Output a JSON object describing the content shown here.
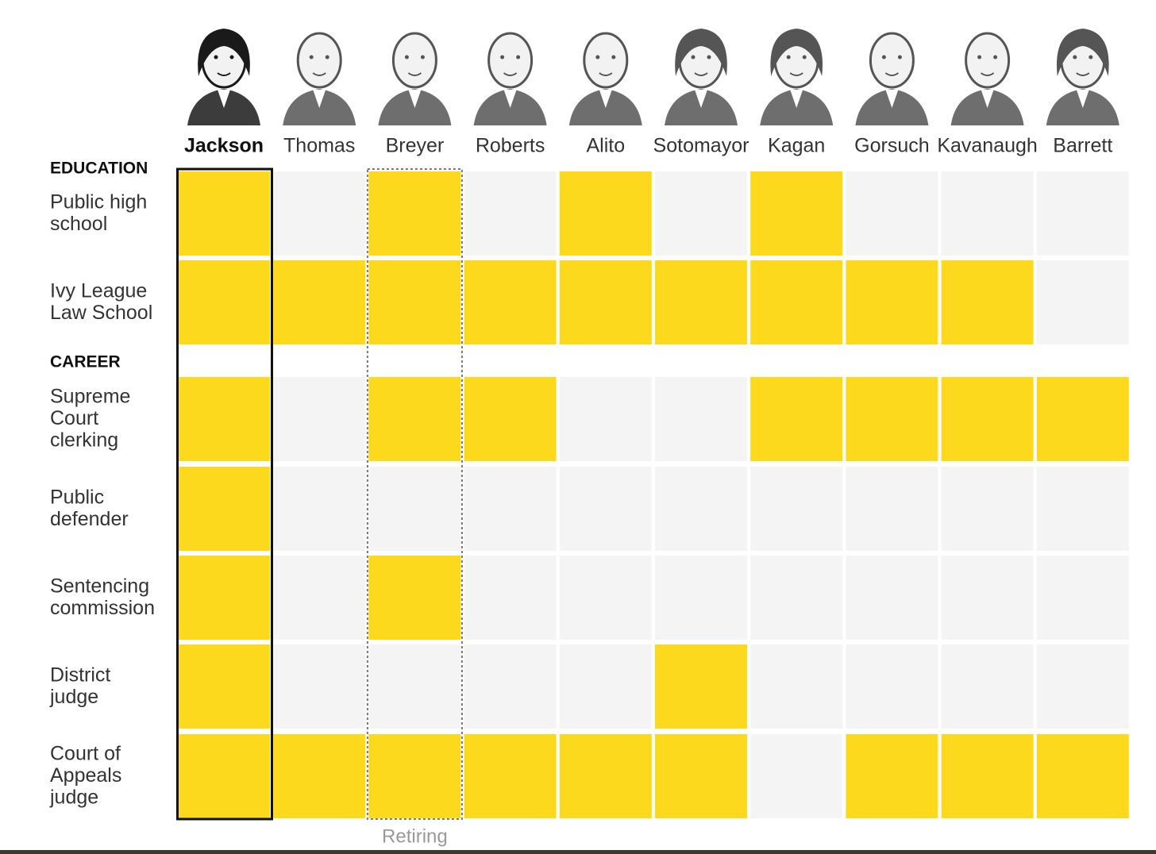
{
  "chart_data": {
    "type": "heatmap",
    "justices": [
      "Jackson",
      "Thomas",
      "Breyer",
      "Roberts",
      "Alito",
      "Sotomayor",
      "Kagan",
      "Gorsuch",
      "Kavanaugh",
      "Barrett"
    ],
    "highlighted_justice": "Jackson",
    "retiring_justice": "Breyer",
    "retiring_label": "Retiring",
    "sections": [
      {
        "title": "EDUCATION",
        "rows": [
          {
            "label": [
              "Public high",
              "school"
            ],
            "values": [
              1,
              0,
              1,
              0,
              1,
              0,
              1,
              0,
              0,
              0
            ]
          },
          {
            "label": [
              "Ivy League",
              "Law School"
            ],
            "values": [
              1,
              1,
              1,
              1,
              1,
              1,
              1,
              1,
              1,
              0
            ]
          }
        ]
      },
      {
        "title": "CAREER",
        "rows": [
          {
            "label": [
              "Supreme",
              "Court",
              "clerking"
            ],
            "values": [
              1,
              0,
              1,
              1,
              0,
              0,
              1,
              1,
              1,
              1
            ]
          },
          {
            "label": [
              "Public",
              "defender"
            ],
            "values": [
              1,
              0,
              0,
              0,
              0,
              0,
              0,
              0,
              0,
              0
            ]
          },
          {
            "label": [
              "Sentencing",
              "commission"
            ],
            "values": [
              1,
              0,
              1,
              0,
              0,
              0,
              0,
              0,
              0,
              0
            ]
          },
          {
            "label": [
              "District",
              "judge"
            ],
            "values": [
              1,
              0,
              0,
              0,
              0,
              1,
              0,
              0,
              0,
              0
            ]
          },
          {
            "label": [
              "Court of",
              "Appeals",
              "judge"
            ],
            "values": [
              1,
              1,
              1,
              1,
              1,
              1,
              0,
              1,
              1,
              1
            ]
          }
        ]
      }
    ],
    "colors": {
      "yes": "#fcd91c",
      "no": "#f4f4f4",
      "text": "#333333",
      "heading": "#111111",
      "portrait": "#555555",
      "retiring_label": "#999999"
    }
  }
}
